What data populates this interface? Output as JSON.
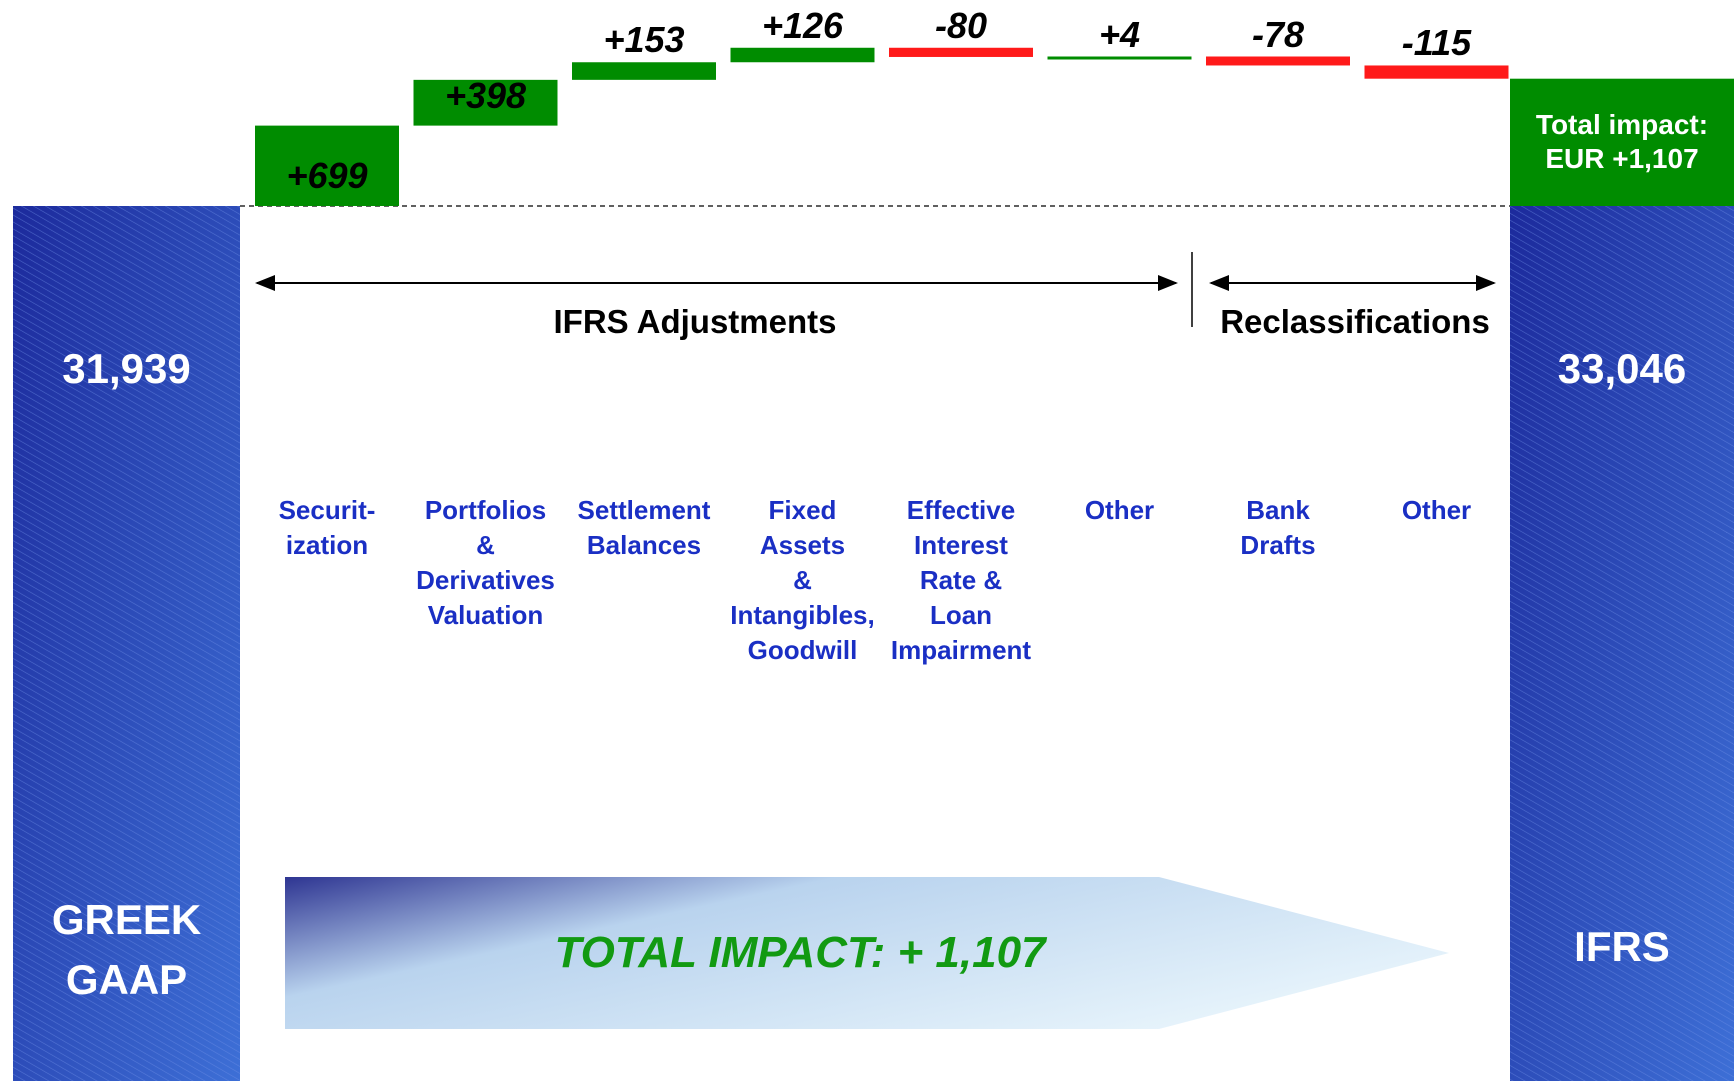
{
  "chart_data": {
    "type": "waterfall",
    "start": 31939,
    "start_label": "31,939",
    "start_name": "GREEK\nGAAP",
    "end": 33046,
    "end_label": "33,046",
    "end_name": "IFRS",
    "categories": [
      "Securit-\nization",
      "Portfolios\n&\nDerivatives\nValuation",
      "Settlement\nBalances",
      "Fixed\nAssets\n&\nIntangibles,\nGoodwill",
      "Effective\nInterest\nRate &\nLoan\nImpairment",
      "Other",
      "Bank\nDrafts",
      "Other"
    ],
    "values": [
      699,
      398,
      153,
      126,
      -80,
      4,
      -78,
      -115
    ],
    "value_labels": [
      "+699",
      "+398",
      "+153",
      "+126",
      "-80",
      "+4",
      "-78",
      "-115"
    ],
    "colors": {
      "up": "#008c00",
      "down": "#ff1a1a"
    },
    "groups": [
      "IFRS Adjustments",
      "Reclassifications"
    ],
    "total_label": "Total impact:\nEUR +1,107",
    "banner": "TOTAL IMPACT: + 1,107"
  }
}
